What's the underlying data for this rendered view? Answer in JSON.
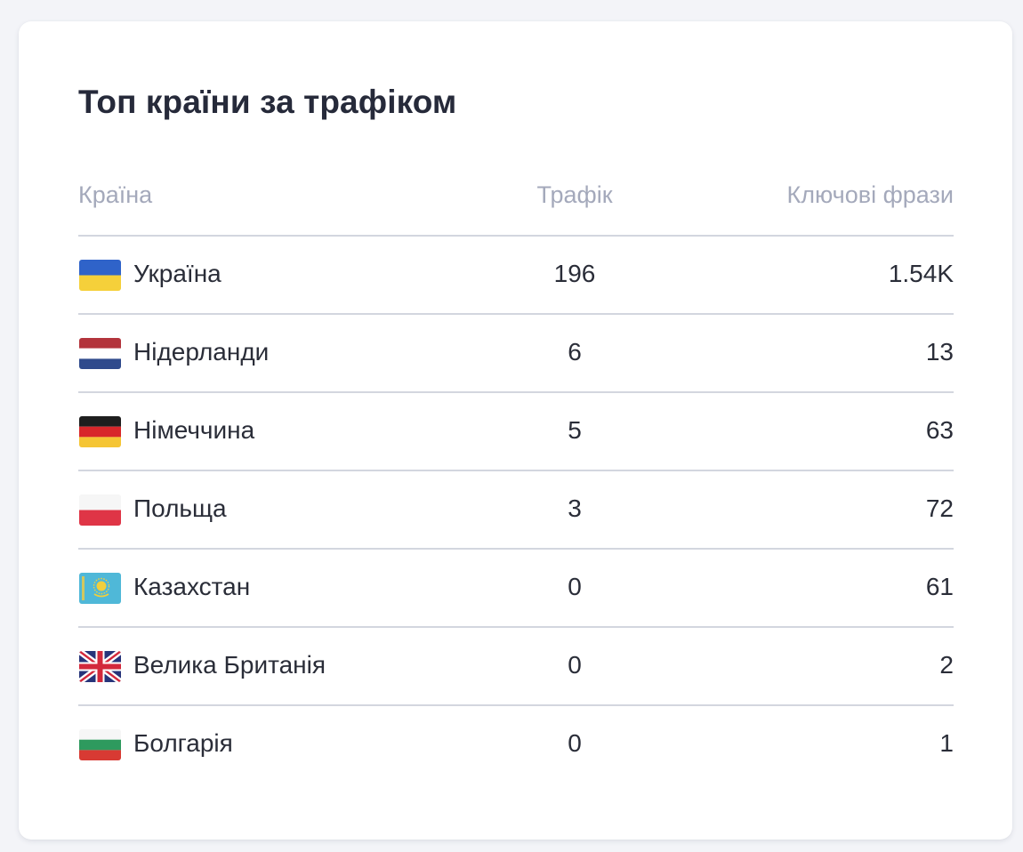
{
  "widget": {
    "title": "Топ країни за трафіком"
  },
  "table": {
    "headers": {
      "country": "Країна",
      "traffic": "Трафік",
      "phrases": "Ключові фрази"
    },
    "rows": [
      {
        "flag_icon": "ukraine-flag-icon",
        "country": "Україна",
        "traffic": "196",
        "phrases": "1.54K"
      },
      {
        "flag_icon": "netherlands-flag-icon",
        "country": "Нідерланди",
        "traffic": "6",
        "phrases": "13"
      },
      {
        "flag_icon": "germany-flag-icon",
        "country": "Німеччина",
        "traffic": "5",
        "phrases": "63"
      },
      {
        "flag_icon": "poland-flag-icon",
        "country": "Польща",
        "traffic": "3",
        "phrases": "72"
      },
      {
        "flag_icon": "kazakhstan-flag-icon",
        "country": "Казахстан",
        "traffic": "0",
        "phrases": "61"
      },
      {
        "flag_icon": "uk-flag-icon",
        "country": "Велика Британія",
        "traffic": "0",
        "phrases": "2"
      },
      {
        "flag_icon": "bulgaria-flag-icon",
        "country": "Болгарія",
        "traffic": "0",
        "phrases": "1"
      }
    ]
  },
  "colors": {
    "background": "#f3f4f8",
    "card": "#ffffff",
    "title_text": "#262a3a",
    "header_text": "#a4a9bb",
    "body_text": "#2a2d38",
    "divider": "#d3d6df"
  }
}
